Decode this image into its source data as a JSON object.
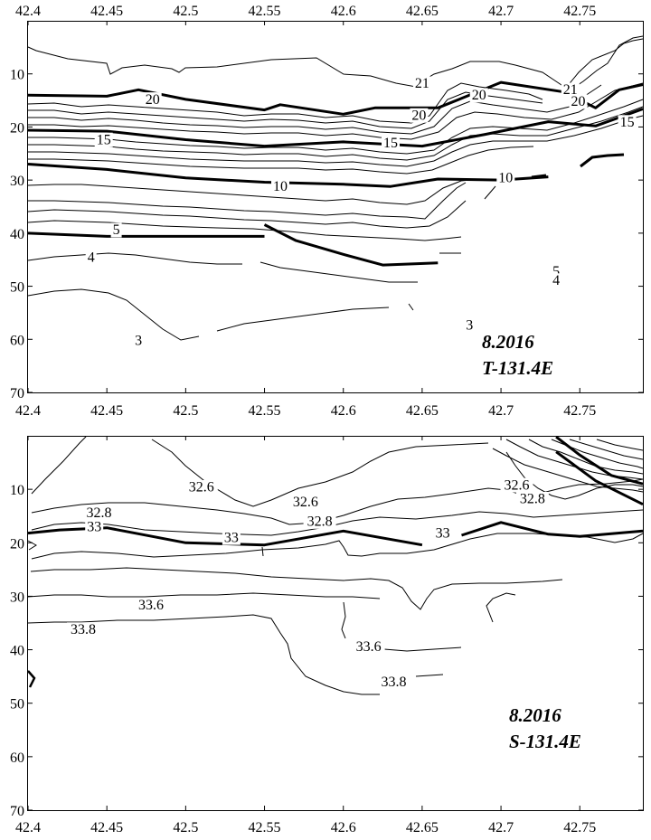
{
  "chart_data": [
    {
      "type": "contour",
      "panel_label": [
        "8.2016",
        "T-131.4E"
      ],
      "xlim": [
        42.4,
        42.79
      ],
      "ylim": [
        0,
        70
      ],
      "x_ticks": [
        "42.4",
        "42.45",
        "42.5",
        "42.55",
        "42.6",
        "42.65",
        "42.7",
        "42.75"
      ],
      "y_ticks": [
        "10",
        "20",
        "30",
        "40",
        "50",
        "60",
        "70"
      ],
      "contour_labels": [
        {
          "text": "21",
          "x": 42.65,
          "y": 12.0
        },
        {
          "text": "21",
          "x": 42.744,
          "y": 13.2
        },
        {
          "text": "20",
          "x": 42.686,
          "y": 14.2
        },
        {
          "text": "20",
          "x": 42.479,
          "y": 15.0
        },
        {
          "text": "20",
          "x": 42.648,
          "y": 18.0
        },
        {
          "text": "20",
          "x": 42.749,
          "y": 15.4
        },
        {
          "text": "15",
          "x": 42.448,
          "y": 22.6
        },
        {
          "text": "15",
          "x": 42.63,
          "y": 23.2
        },
        {
          "text": "15",
          "x": 42.78,
          "y": 19.3
        },
        {
          "text": "10",
          "x": 42.56,
          "y": 31.4
        },
        {
          "text": "10",
          "x": 42.703,
          "y": 29.8
        },
        {
          "text": "5",
          "x": 42.456,
          "y": 39.6
        },
        {
          "text": "5",
          "x": 42.735,
          "y": 47.4
        },
        {
          "text": "4",
          "x": 42.44,
          "y": 44.8
        },
        {
          "text": "4",
          "x": 42.735,
          "y": 49.1
        },
        {
          "text": "3",
          "x": 42.47,
          "y": 60.4
        },
        {
          "text": "3",
          "x": 42.68,
          "y": 57.5
        }
      ],
      "bold_isolines": [
        {
          "level": 20,
          "points": [
            [
              42.4,
              14.0
            ],
            [
              42.45,
              14.2
            ],
            [
              42.47,
              13.0
            ],
            [
              42.5,
              14.8
            ],
            [
              42.55,
              16.8
            ],
            [
              42.56,
              15.8
            ],
            [
              42.6,
              17.6
            ],
            [
              42.62,
              16.4
            ],
            [
              42.66,
              16.4
            ],
            [
              42.7,
              11.6
            ],
            [
              42.74,
              13.4
            ],
            [
              42.76,
              16.4
            ],
            [
              42.775,
              13.0
            ],
            [
              42.79,
              12.0
            ]
          ]
        },
        {
          "level": 15,
          "points": [
            [
              42.4,
              20.6
            ],
            [
              42.45,
              20.8
            ],
            [
              42.5,
              22.4
            ],
            [
              42.55,
              23.6
            ],
            [
              42.6,
              22.8
            ],
            [
              42.65,
              23.6
            ],
            [
              42.69,
              21.4
            ],
            [
              42.73,
              19.0
            ],
            [
              42.76,
              19.8
            ],
            [
              42.79,
              16.6
            ]
          ]
        },
        {
          "level": 10,
          "points": [
            [
              42.4,
              27.0
            ],
            [
              42.45,
              28.0
            ],
            [
              42.5,
              29.6
            ],
            [
              42.55,
              30.4
            ],
            [
              42.6,
              30.8
            ],
            [
              42.63,
              31.2
            ],
            [
              42.66,
              29.8
            ],
            [
              42.7,
              30.0
            ],
            [
              42.73,
              29.4
            ]
          ]
        },
        {
          "level": 5,
          "points": [
            [
              42.4,
              40.0
            ],
            [
              42.45,
              40.6
            ],
            [
              42.5,
              40.6
            ],
            [
              42.55,
              40.6
            ]
          ]
        },
        {
          "level": 5,
          "points": [
            [
              42.55,
              38.4
            ],
            [
              42.57,
              41.4
            ],
            [
              42.6,
              44.0
            ],
            [
              42.625,
              46.0
            ],
            [
              42.66,
              45.6
            ]
          ]
        }
      ]
    },
    {
      "type": "contour",
      "panel_label": [
        "8.2016",
        "S-131.4E"
      ],
      "xlim": [
        42.4,
        42.79
      ],
      "ylim": [
        0,
        70
      ],
      "x_ticks": [
        "42.4",
        "42.45",
        "42.5",
        "42.55",
        "42.6",
        "42.65",
        "42.7",
        "42.75"
      ],
      "y_ticks": [
        "10",
        "20",
        "30",
        "40",
        "50",
        "60",
        "70"
      ],
      "contour_labels": [
        {
          "text": "32.6",
          "x": 42.51,
          "y": 9.8
        },
        {
          "text": "32.6",
          "x": 42.576,
          "y": 12.6
        },
        {
          "text": "32.6",
          "x": 42.71,
          "y": 9.4
        },
        {
          "text": "32.8",
          "x": 42.445,
          "y": 14.6
        },
        {
          "text": "32.8",
          "x": 42.585,
          "y": 16.2
        },
        {
          "text": "32.8",
          "x": 42.72,
          "y": 12.0
        },
        {
          "text": "33",
          "x": 42.442,
          "y": 17.2
        },
        {
          "text": "33",
          "x": 42.529,
          "y": 19.2
        },
        {
          "text": "33",
          "x": 42.663,
          "y": 18.4
        },
        {
          "text": "33.6",
          "x": 42.478,
          "y": 31.8
        },
        {
          "text": "33.6",
          "x": 42.616,
          "y": 39.6
        },
        {
          "text": "33.8",
          "x": 42.435,
          "y": 36.4
        },
        {
          "text": "33.8",
          "x": 42.632,
          "y": 46.2
        }
      ],
      "bold_isolines": [
        {
          "level": 33,
          "points": [
            [
              42.4,
              18.2
            ],
            [
              42.42,
              17.6
            ],
            [
              42.45,
              17.2
            ],
            [
              42.5,
              20.0
            ],
            [
              42.55,
              20.4
            ],
            [
              42.6,
              17.8
            ],
            [
              42.65,
              20.4
            ]
          ]
        },
        {
          "level": 33,
          "points": [
            [
              42.675,
              18.6
            ],
            [
              42.7,
              16.2
            ],
            [
              42.73,
              18.4
            ],
            [
              42.75,
              18.8
            ],
            [
              42.79,
              17.8
            ]
          ]
        },
        {
          "level": 33,
          "points": [
            [
              42.735,
              0.2
            ],
            [
              42.75,
              3.6
            ],
            [
              42.77,
              7.4
            ],
            [
              42.79,
              9.0
            ]
          ]
        },
        {
          "level": 33,
          "points": [
            [
              42.735,
              3.0
            ],
            [
              42.76,
              8.4
            ],
            [
              42.79,
              12.8
            ]
          ]
        }
      ]
    }
  ]
}
